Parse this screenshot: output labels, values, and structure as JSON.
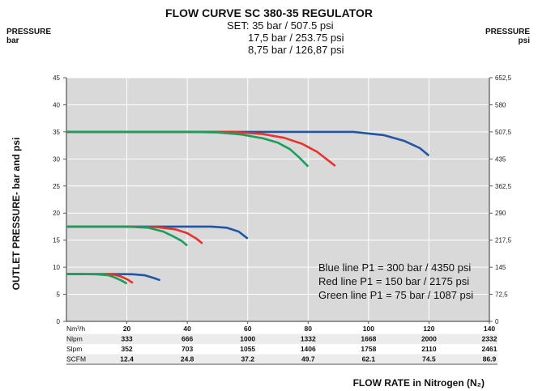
{
  "header": {
    "title": "FLOW CURVE SC 380-35 REGULATOR",
    "set_lines": [
      "SET: 35 bar / 507.5 psi",
      "17,5 bar / 253.75 psi",
      "8,75 bar / 126,87 psi"
    ],
    "left_axis_heading": [
      "PRESSURE",
      "bar"
    ],
    "right_axis_heading": [
      "PRESSURE",
      "psi"
    ]
  },
  "chart_data": {
    "type": "line",
    "title": "FLOW CURVE SC 380-35 REGULATOR",
    "ylabel": "OUTLET PRESSURE- bar and psi",
    "xlabel": "FLOW RATE in Nitrogen (N₂)",
    "x_unit": "Nm³/h",
    "xlim": [
      0,
      140
    ],
    "ylim": [
      0,
      45
    ],
    "grid": true,
    "y_ticks_bar": [
      0,
      5,
      10,
      15,
      20,
      25,
      30,
      35,
      40,
      45
    ],
    "y_ticks_psi": [
      "0",
      "72,5",
      "145",
      "217,5",
      "290",
      "362,5",
      "435",
      "507,5",
      "580",
      "652,5"
    ],
    "flow_table": {
      "rows": [
        {
          "label": "Nm³/h",
          "values": [
            "20",
            "40",
            "60",
            "80",
            "100",
            "120",
            "140"
          ]
        },
        {
          "label": "Nlpm",
          "values": [
            "333",
            "666",
            "1000",
            "1332",
            "1668",
            "2000",
            "2332"
          ]
        },
        {
          "label": "Slpm",
          "values": [
            "352",
            "703",
            "1055",
            "1406",
            "1758",
            "2110",
            "2461"
          ]
        },
        {
          "label": "SCFM",
          "values": [
            "12.4",
            "24.8",
            "37.2",
            "49.7",
            "62.1",
            "74.5",
            "86.9"
          ]
        }
      ]
    },
    "legend": [
      "Blue line P1 = 300 bar / 4350 psi",
      "Red line P1 = 150 bar / 2175 psi",
      "Green line P1 = 75 bar / 1087 psi"
    ],
    "legend_placement": "bottom-right",
    "series": [
      {
        "name": "Blue line P1 = 300 bar / 4350 psi",
        "color": "#2255a4",
        "setpoint": 35,
        "points": [
          [
            0,
            35
          ],
          [
            20,
            35
          ],
          [
            40,
            35
          ],
          [
            60,
            35
          ],
          [
            80,
            35
          ],
          [
            95,
            35
          ],
          [
            105,
            34.4
          ],
          [
            112,
            33.3
          ],
          [
            117,
            32.0
          ],
          [
            120,
            30.6
          ]
        ]
      },
      {
        "name": "Red line P1 = 150 bar / 2175 psi",
        "color": "#e8322b",
        "setpoint": 35,
        "points": [
          [
            0,
            35
          ],
          [
            20,
            35
          ],
          [
            40,
            35
          ],
          [
            55,
            35
          ],
          [
            65,
            34.6
          ],
          [
            72,
            33.9
          ],
          [
            78,
            32.8
          ],
          [
            83,
            31.3
          ],
          [
            86,
            30.0
          ],
          [
            89,
            28.7
          ]
        ]
      },
      {
        "name": "Green line P1 = 75 bar / 1087 psi",
        "color": "#1a9e5c",
        "setpoint": 35,
        "points": [
          [
            0,
            35
          ],
          [
            20,
            35
          ],
          [
            40,
            35
          ],
          [
            50,
            34.9
          ],
          [
            58,
            34.5
          ],
          [
            65,
            33.8
          ],
          [
            70,
            33.0
          ],
          [
            74,
            31.8
          ],
          [
            77,
            30.3
          ],
          [
            80,
            28.6
          ]
        ]
      },
      {
        "name": "Blue line P1 = 300 bar / 4350 psi",
        "color": "#2255a4",
        "setpoint": 17.5,
        "points": [
          [
            0,
            17.5
          ],
          [
            20,
            17.5
          ],
          [
            40,
            17.5
          ],
          [
            48,
            17.5
          ],
          [
            53,
            17.3
          ],
          [
            57,
            16.6
          ],
          [
            60,
            15.3
          ]
        ]
      },
      {
        "name": "Red line P1 = 150 bar / 2175 psi",
        "color": "#e8322b",
        "setpoint": 17.5,
        "points": [
          [
            0,
            17.5
          ],
          [
            20,
            17.5
          ],
          [
            30,
            17.4
          ],
          [
            36,
            17.0
          ],
          [
            40,
            16.3
          ],
          [
            43,
            15.3
          ],
          [
            45,
            14.4
          ]
        ]
      },
      {
        "name": "Green line P1 = 75 bar / 1087 psi",
        "color": "#1a9e5c",
        "setpoint": 17.5,
        "points": [
          [
            0,
            17.5
          ],
          [
            20,
            17.5
          ],
          [
            27,
            17.3
          ],
          [
            32,
            16.6
          ],
          [
            35,
            15.8
          ],
          [
            38,
            14.9
          ],
          [
            40,
            14.0
          ]
        ]
      },
      {
        "name": "Blue line P1 = 300 bar / 4350 psi",
        "color": "#2255a4",
        "setpoint": 8.75,
        "points": [
          [
            0,
            8.75
          ],
          [
            15,
            8.75
          ],
          [
            22,
            8.7
          ],
          [
            26,
            8.5
          ],
          [
            29,
            8.0
          ],
          [
            31,
            7.6
          ]
        ]
      },
      {
        "name": "Red line P1 = 150 bar / 2175 psi",
        "color": "#e8322b",
        "setpoint": 8.75,
        "points": [
          [
            0,
            8.75
          ],
          [
            12,
            8.7
          ],
          [
            16,
            8.6
          ],
          [
            18,
            8.3
          ],
          [
            20,
            7.8
          ],
          [
            22,
            7.1
          ]
        ]
      },
      {
        "name": "Green line P1 = 75 bar / 1087 psi",
        "color": "#1a9e5c",
        "setpoint": 8.75,
        "points": [
          [
            0,
            8.75
          ],
          [
            10,
            8.7
          ],
          [
            14,
            8.5
          ],
          [
            16,
            8.1
          ],
          [
            18,
            7.6
          ],
          [
            20,
            7.0
          ]
        ]
      }
    ]
  }
}
